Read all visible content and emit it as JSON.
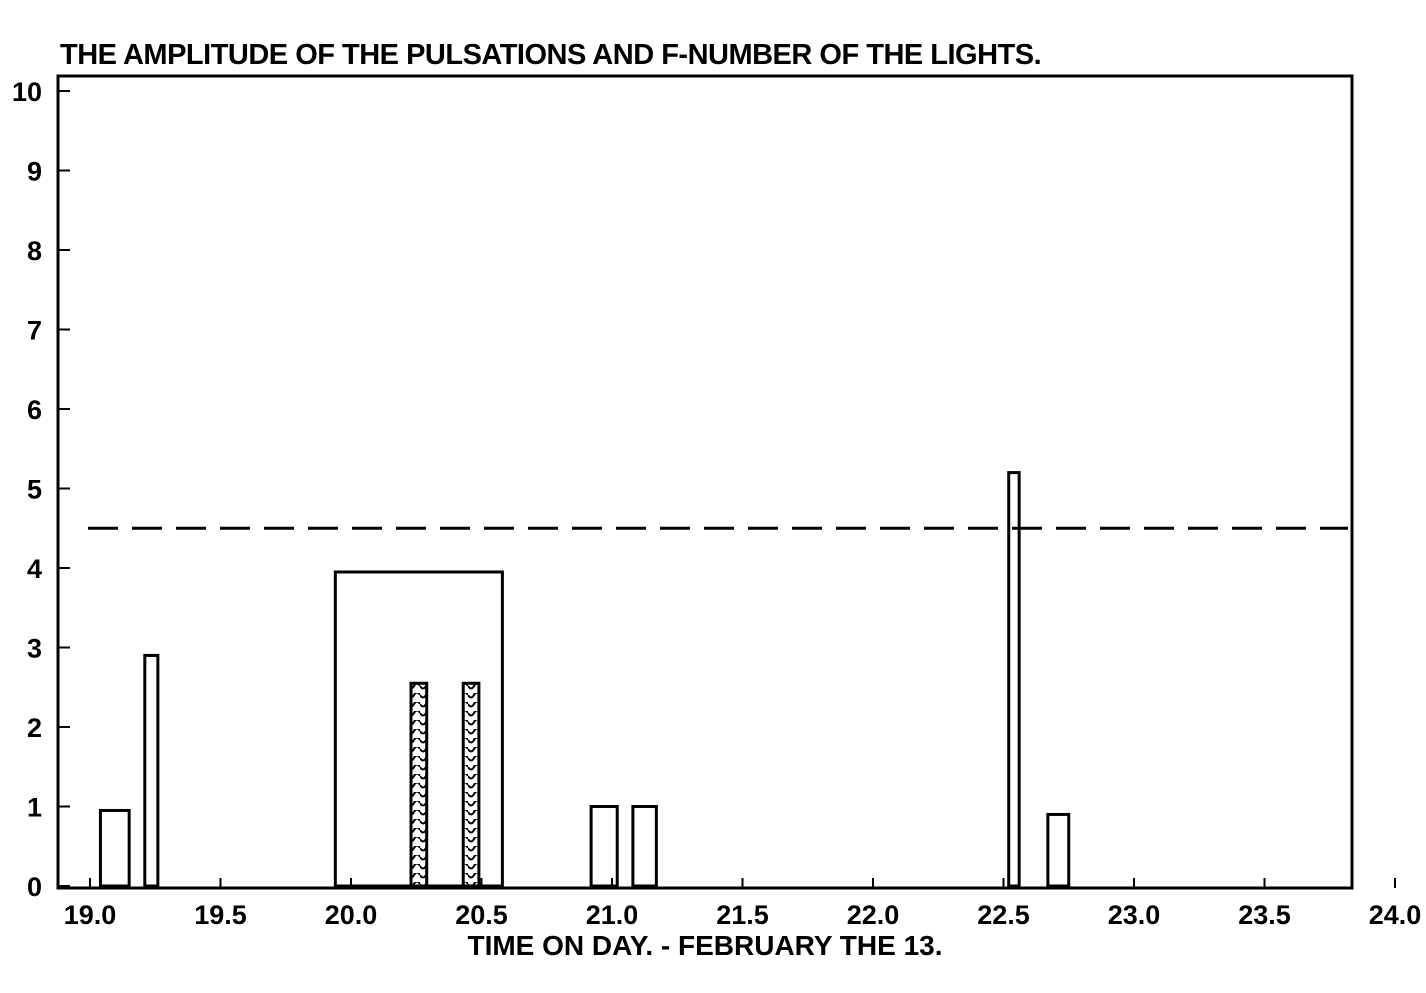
{
  "chart_data": {
    "type": "bar",
    "title": "THE AMPLITUDE OF THE PULSATIONS AND F-NUMBER OF THE LIGHTS.",
    "xlabel": "TIME ON DAY. - FEBRUARY THE 13.",
    "ylabel": "",
    "xlim": [
      18.9,
      24.1
    ],
    "ylim": [
      0,
      10
    ],
    "x_ticks": [
      19.0,
      19.5,
      20.0,
      20.5,
      21.0,
      21.5,
      22.0,
      22.5,
      23.0,
      23.5,
      24.0
    ],
    "x_tick_labels": [
      "19.0",
      "19.5",
      "20.0",
      "20.5",
      "21.0",
      "21.5",
      "22.0",
      "22.5",
      "23.0",
      "23.5",
      "24.0"
    ],
    "y_ticks": [
      0,
      1,
      2,
      3,
      4,
      5,
      6,
      7,
      8,
      9,
      10
    ],
    "y_tick_labels": [
      "0",
      "1",
      "2",
      "3",
      "4",
      "5",
      "6",
      "7",
      "8",
      "9",
      "10"
    ],
    "grid": false,
    "threshold_line": {
      "y": 4.5,
      "style": "dashed"
    },
    "series": [
      {
        "style": "outline",
        "bars": [
          {
            "x_start": 19.04,
            "x_end": 19.15,
            "value": 0.95
          },
          {
            "x_start": 19.21,
            "x_end": 19.26,
            "value": 2.9
          },
          {
            "x_start": 19.94,
            "x_end": 20.58,
            "value": 3.95
          },
          {
            "x_start": 20.92,
            "x_end": 21.02,
            "value": 1.0
          },
          {
            "x_start": 21.08,
            "x_end": 21.17,
            "value": 1.0
          },
          {
            "x_start": 22.52,
            "x_end": 22.56,
            "value": 5.2
          },
          {
            "x_start": 22.67,
            "x_end": 22.75,
            "value": 0.9
          }
        ]
      },
      {
        "style": "hatched",
        "bars": [
          {
            "x_start": 20.23,
            "x_end": 20.29,
            "value": 2.55
          },
          {
            "x_start": 20.43,
            "x_end": 20.49,
            "value": 2.55
          }
        ]
      }
    ]
  }
}
